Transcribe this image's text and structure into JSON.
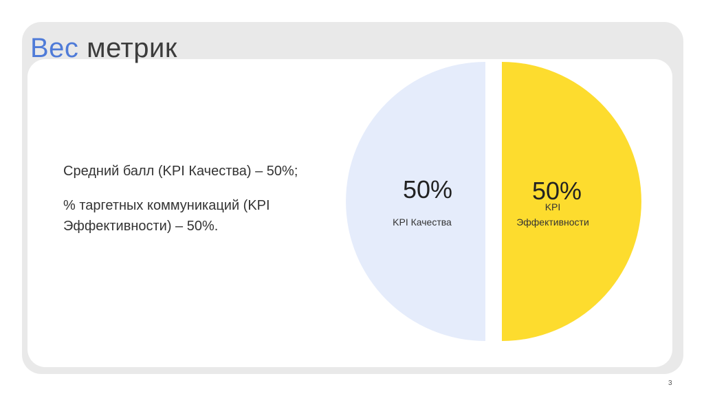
{
  "slide": {
    "title_accent": "Вес",
    "title_rest": "метрик",
    "paragraphs": [
      "Средний балл (KPI Качества) – 50%;",
      "% таргетных коммуникаций (KPI Эффективности) – 50%."
    ],
    "page_number": "3"
  },
  "chart_data": {
    "type": "pie",
    "categories": [
      "KPI Качества",
      "KPI Эффективности"
    ],
    "values": [
      50,
      50
    ],
    "percent_labels": [
      "50%",
      "50%"
    ],
    "colors": [
      "#e5ecfb",
      "#fddc2e"
    ]
  }
}
